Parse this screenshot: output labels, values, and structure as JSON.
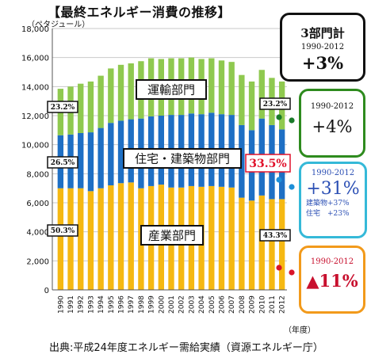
{
  "title": "【最終エネルギー消費の推移】",
  "unit_label": "（ペタジュール）",
  "x_unit_label": "（年度）",
  "source": "出典:平成24年度エネルギー需給実績（資源エネルギー庁）",
  "colors": {
    "industry": "#f5b812",
    "residential": "#1e6fc4",
    "transport": "#8fc94f"
  },
  "chart_data": {
    "type": "bar",
    "stacked": true,
    "categories": [
      "1990",
      "1991",
      "1992",
      "1993",
      "1994",
      "1995",
      "1996",
      "1997",
      "1998",
      "1999",
      "2000",
      "2001",
      "2002",
      "2003",
      "2004",
      "2005",
      "2006",
      "2007",
      "2008",
      "2009",
      "2010",
      "2011",
      "2012"
    ],
    "series": [
      {
        "name": "産業部門",
        "values": [
          7000,
          7000,
          7000,
          6800,
          7000,
          7200,
          7350,
          7400,
          7000,
          7150,
          7250,
          7050,
          7050,
          7150,
          7100,
          7150,
          7100,
          7050,
          6350,
          6150,
          6500,
          6250,
          6250
        ]
      },
      {
        "name": "住宅・建築物部門",
        "values": [
          3650,
          3700,
          3800,
          4050,
          4150,
          4300,
          4300,
          4350,
          4800,
          4800,
          4750,
          5000,
          5000,
          5000,
          5000,
          5050,
          5000,
          5000,
          5000,
          4850,
          5300,
          5100,
          4800
        ]
      },
      {
        "name": "運輸部門",
        "values": [
          3200,
          3300,
          3400,
          3500,
          3600,
          3750,
          3850,
          3850,
          3950,
          4000,
          3900,
          3900,
          3900,
          3850,
          3800,
          3750,
          3700,
          3650,
          3450,
          3350,
          3350,
          3250,
          3300
        ]
      }
    ],
    "ylim": [
      0,
      18000
    ],
    "yticks": [
      "0",
      "2,000",
      "4,000",
      "6,000",
      "8,000",
      "10,000",
      "12,000",
      "14,000",
      "16,000",
      "18,000"
    ],
    "segment_labels": {
      "transport": "運輸部門",
      "residential": "住宅・建築物部門",
      "industry": "産業部門"
    },
    "share_1990": {
      "transport": "23.2%",
      "residential": "26.5%",
      "industry": "50.3%"
    },
    "share_2012": {
      "transport": "23.2%",
      "residential": "33.5%",
      "industry": "43.3%"
    }
  },
  "callouts": {
    "total": {
      "title": "3部門計",
      "period": "1990-2012",
      "change": "+3%"
    },
    "transport": {
      "period": "1990-2012",
      "change": "+4%"
    },
    "residential": {
      "period": "1990-2012",
      "change": "+31%",
      "sub1": "建築物+37%",
      "sub2": "住宅　+23%"
    },
    "industry": {
      "period": "1990-2012",
      "change": "▲11%"
    }
  }
}
